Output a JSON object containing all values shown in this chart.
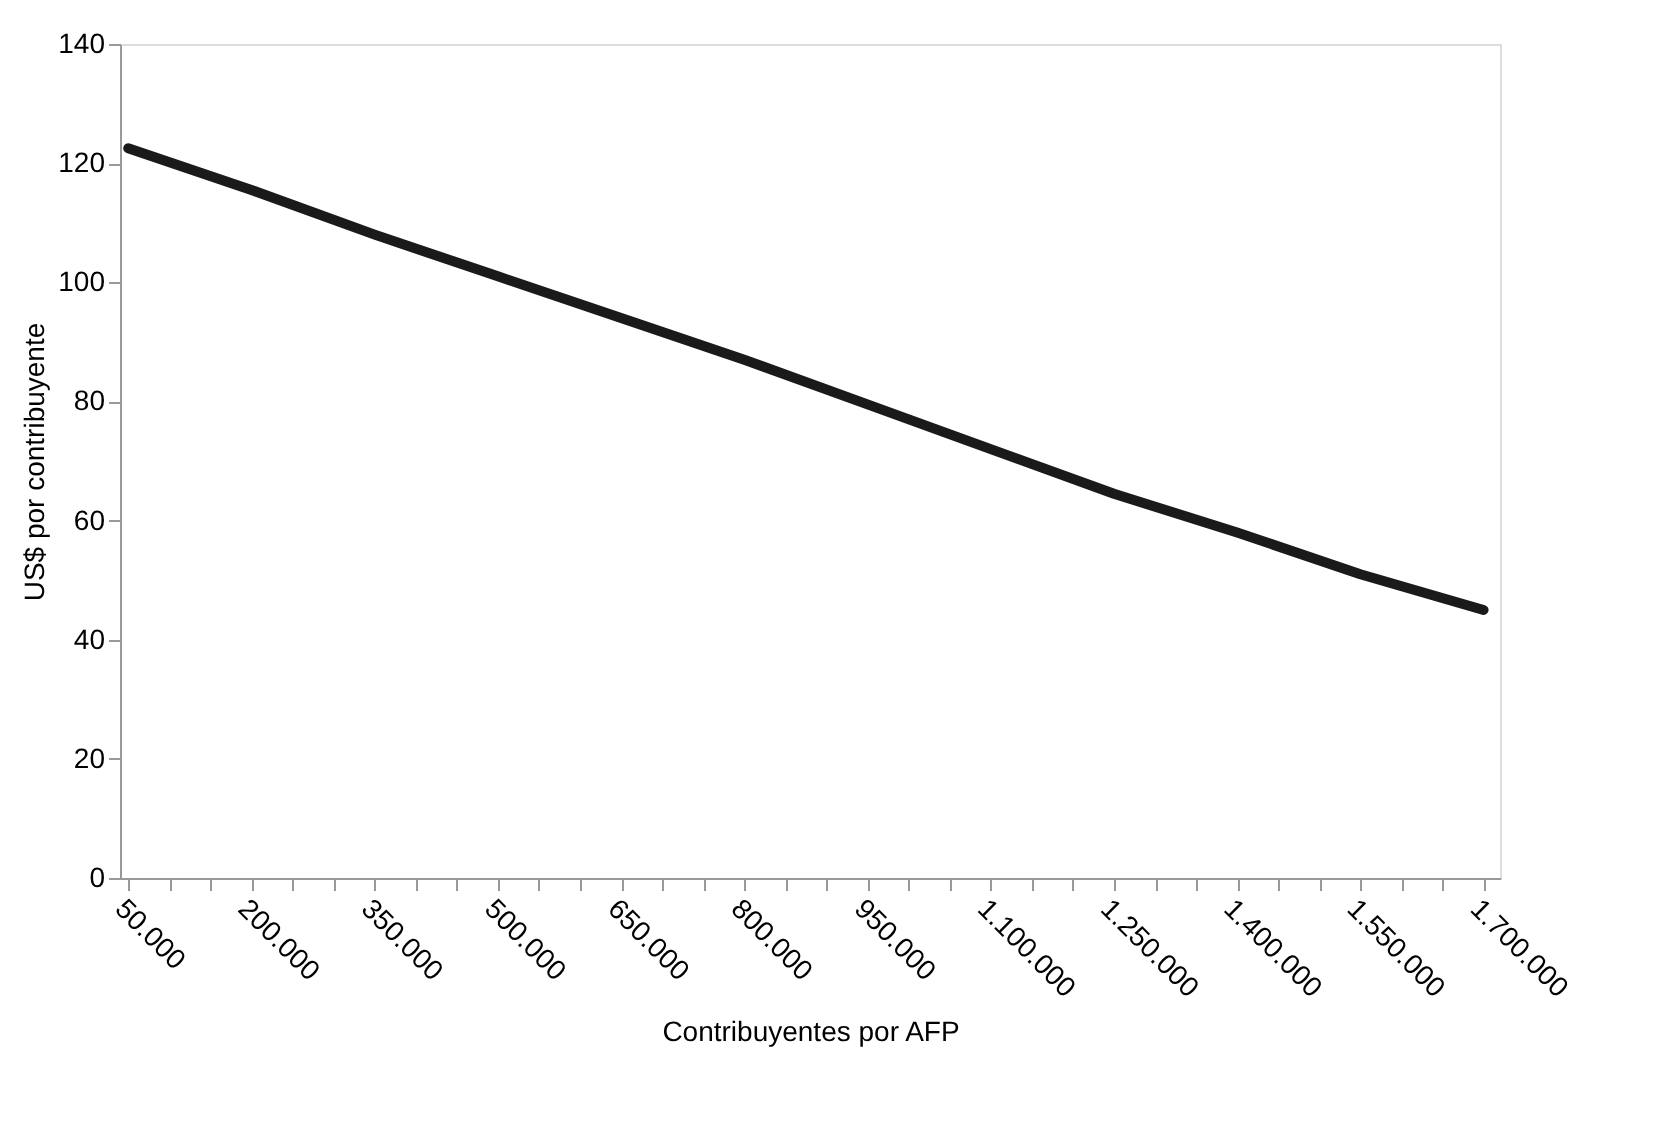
{
  "chart_data": {
    "type": "line",
    "xlabel": "Contribuyentes por AFP",
    "ylabel": "US$ por contribuyente",
    "x": [
      50000,
      200000,
      350000,
      500000,
      650000,
      800000,
      950000,
      1100000,
      1250000,
      1400000,
      1550000,
      1700000
    ],
    "series": [
      {
        "color": "#1a1a1a",
        "values": [
          122.5,
          115.5,
          108,
          101,
          94,
          87,
          79.5,
          72,
          64.5,
          58,
          51,
          45
        ]
      }
    ],
    "xlim": [
      40000,
      1720000
    ],
    "xticks": [
      {
        "value": 50000,
        "label": "50.000"
      },
      {
        "value": 100000,
        "label": null
      },
      {
        "value": 150000,
        "label": null
      },
      {
        "value": 200000,
        "label": "200.000"
      },
      {
        "value": 250000,
        "label": null
      },
      {
        "value": 300000,
        "label": null
      },
      {
        "value": 350000,
        "label": "350.000"
      },
      {
        "value": 400000,
        "label": null
      },
      {
        "value": 450000,
        "label": null
      },
      {
        "value": 500000,
        "label": "500.000"
      },
      {
        "value": 550000,
        "label": null
      },
      {
        "value": 600000,
        "label": null
      },
      {
        "value": 650000,
        "label": "650.000"
      },
      {
        "value": 700000,
        "label": null
      },
      {
        "value": 750000,
        "label": null
      },
      {
        "value": 800000,
        "label": "800.000"
      },
      {
        "value": 850000,
        "label": null
      },
      {
        "value": 900000,
        "label": null
      },
      {
        "value": 950000,
        "label": "950.000"
      },
      {
        "value": 1000000,
        "label": null
      },
      {
        "value": 1050000,
        "label": null
      },
      {
        "value": 1100000,
        "label": "1.100.000"
      },
      {
        "value": 1150000,
        "label": null
      },
      {
        "value": 1200000,
        "label": null
      },
      {
        "value": 1250000,
        "label": "1.250.000"
      },
      {
        "value": 1300000,
        "label": null
      },
      {
        "value": 1350000,
        "label": null
      },
      {
        "value": 1400000,
        "label": "1.400.000"
      },
      {
        "value": 1450000,
        "label": null
      },
      {
        "value": 1500000,
        "label": null
      },
      {
        "value": 1550000,
        "label": "1.550.000"
      },
      {
        "value": 1600000,
        "label": null
      },
      {
        "value": 1650000,
        "label": null
      },
      {
        "value": 1700000,
        "label": "1.700.000"
      }
    ],
    "ylim": [
      0,
      140
    ],
    "yticks": [
      0,
      20,
      40,
      60,
      80,
      100,
      120,
      140
    ],
    "grid": false,
    "legend": false,
    "marker": "none",
    "line_style": "solid"
  }
}
